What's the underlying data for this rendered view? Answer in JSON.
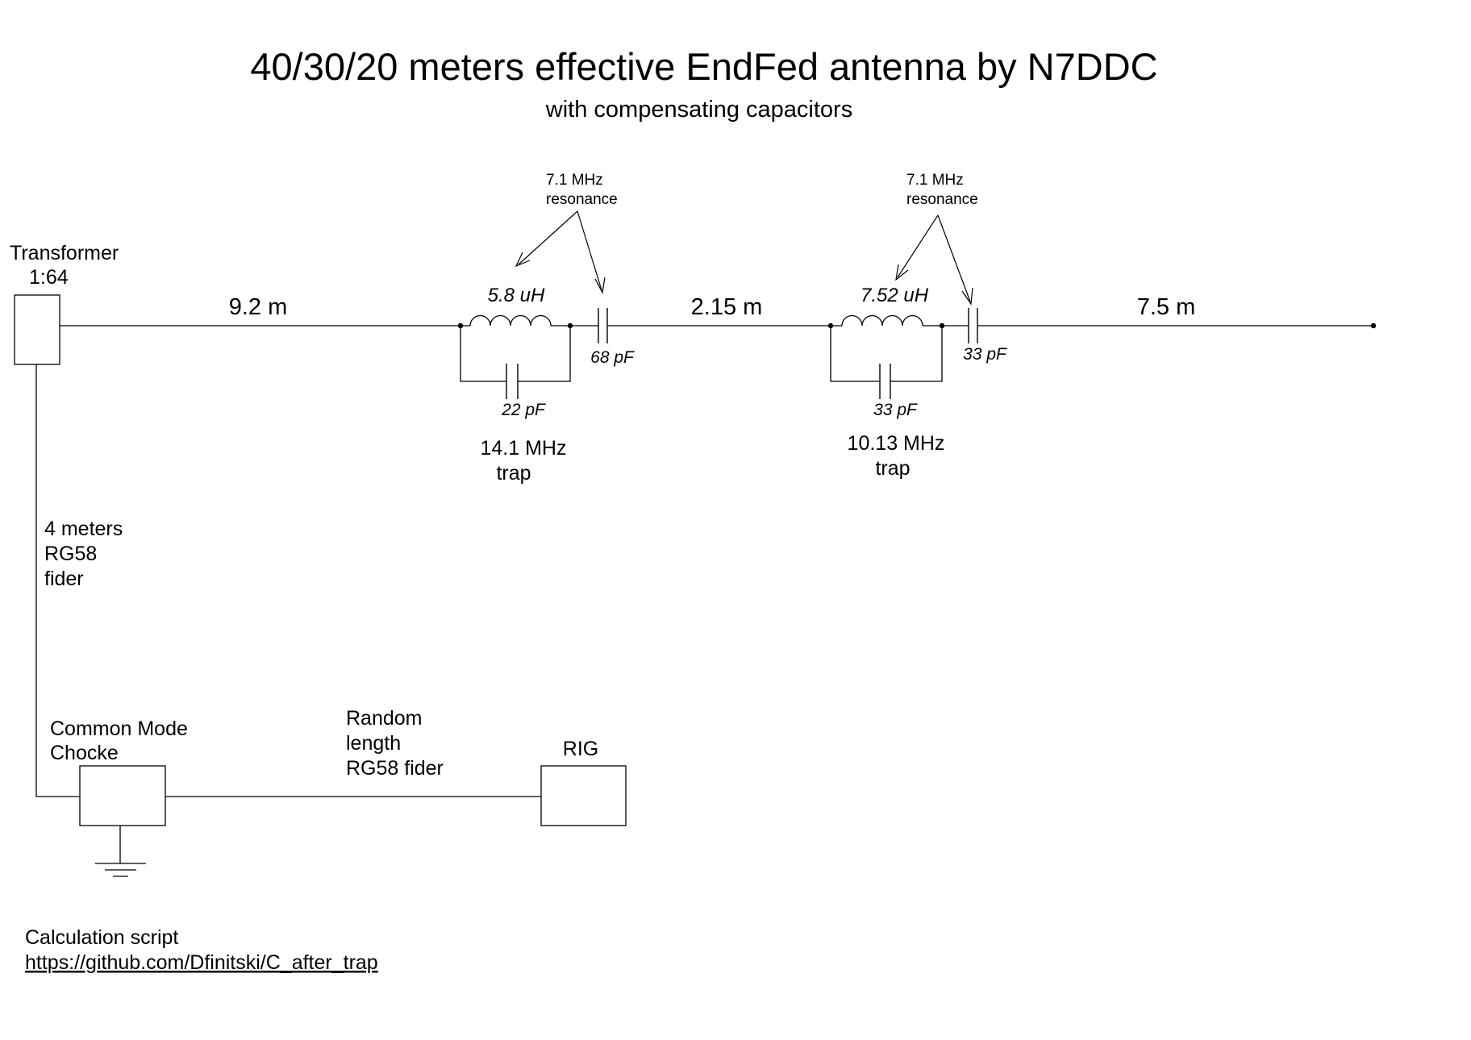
{
  "title": "40/30/20 meters effective EndFed antenna by N7DDC",
  "subtitle": "with compensating capacitors",
  "transformer": {
    "label": "Transformer",
    "ratio": "1:64"
  },
  "segments": {
    "first": "9.2 m",
    "second": "2.15 m",
    "third": "7.5 m"
  },
  "trap_20m": {
    "inductor": "5.8 uH",
    "parallel_cap": "22 pF",
    "series_cap": "68 pF",
    "freq": "14.1 MHz",
    "word": "trap",
    "resonance_freq": "7.1 MHz",
    "resonance_word": "resonance"
  },
  "trap_30m": {
    "inductor": "7.52 uH",
    "parallel_cap": "33 pF",
    "series_cap": "33 pF",
    "freq": "10.13 MHz",
    "word": "trap",
    "resonance_freq": "7.1 MHz",
    "resonance_word": "resonance"
  },
  "feeder": {
    "line1": "4 meters",
    "line2": "RG58",
    "line3": "fider"
  },
  "choke": {
    "line1": "Common Mode",
    "line2": "Chocke"
  },
  "random_feeder": {
    "line1": "Random",
    "line2": "length",
    "line3": "RG58 fider"
  },
  "rig": {
    "label": "RIG"
  },
  "script": {
    "label": "Calculation script",
    "url": "https://github.com/Dfinitski/C_after_trap"
  }
}
